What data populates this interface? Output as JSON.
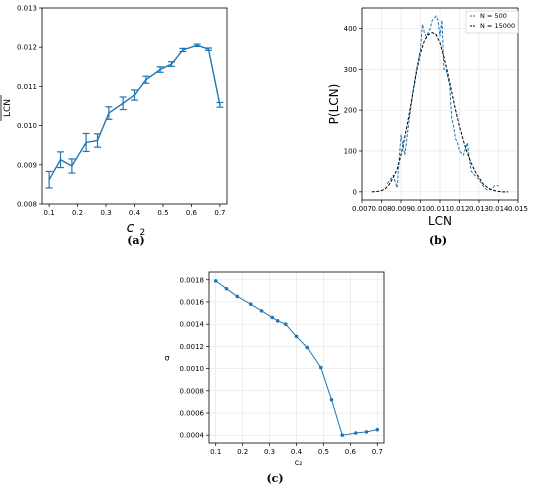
{
  "chart_data": [
    {
      "type": "line",
      "panel_label": "(a)",
      "xlabel": "c",
      "xlabel_sub": "2",
      "ylabel": "LCN",
      "xlim": [
        0.075,
        0.725
      ],
      "ylim": [
        0.008,
        0.013
      ],
      "xticks": [
        "0.1",
        "0.2",
        "0.3",
        "0.4",
        "0.5",
        "0.6",
        "0.7"
      ],
      "yticks": [
        "0.008",
        "0.009",
        "0.010",
        "0.011",
        "0.012",
        "0.013"
      ],
      "grid": false,
      "error_bars": true,
      "color": "#1f77b4",
      "series": [
        {
          "x": [
            0.1,
            0.14,
            0.18,
            0.23,
            0.27,
            0.31,
            0.36,
            0.4,
            0.44,
            0.49,
            0.53,
            0.57,
            0.62,
            0.66,
            0.7
          ],
          "y": [
            0.00862,
            0.00913,
            0.00897,
            0.00957,
            0.00962,
            0.01032,
            0.01057,
            0.01078,
            0.01117,
            0.01143,
            0.01157,
            0.01193,
            0.01205,
            0.01195,
            0.01053
          ],
          "err": [
            0.00021,
            0.0002,
            0.00018,
            0.00023,
            0.00017,
            0.00016,
            0.00016,
            0.00013,
            9e-05,
            7e-05,
            6e-05,
            4e-05,
            3e-05,
            3e-05,
            6e-05
          ]
        }
      ]
    },
    {
      "type": "line",
      "panel_label": "(b)",
      "xlabel": "LCN",
      "ylabel": "P(LCN)",
      "xlim": [
        0.007,
        0.015
      ],
      "ylim": [
        -20,
        450
      ],
      "xticks": [
        "0.007",
        "0.008",
        "0.009",
        "0.010",
        "0.011",
        "0.012",
        "0.013",
        "0.014",
        "0.015"
      ],
      "yticks": [
        "0",
        "100",
        "200",
        "300",
        "400"
      ],
      "grid": true,
      "legend_position": "top-right",
      "series": [
        {
          "name": "N = 500",
          "color": "#1f77b4",
          "style": "dashed",
          "x": [
            0.0083,
            0.0086,
            0.0088,
            0.009,
            0.0092,
            0.0094,
            0.0096,
            0.0098,
            0.01,
            0.0101,
            0.0102,
            0.0103,
            0.0104,
            0.0105,
            0.0106,
            0.0107,
            0.0108,
            0.0109,
            0.011,
            0.0111,
            0.0112,
            0.0113,
            0.0114,
            0.0115,
            0.0116,
            0.0117,
            0.0118,
            0.0119,
            0.012,
            0.0121,
            0.0122,
            0.0124,
            0.0126,
            0.0128,
            0.013,
            0.0132,
            0.0134,
            0.0136,
            0.0138,
            0.014
          ],
          "y": [
            20,
            40,
            10,
            140,
            90,
            170,
            240,
            300,
            350,
            410,
            390,
            380,
            390,
            400,
            420,
            425,
            430,
            420,
            380,
            420,
            300,
            300,
            280,
            260,
            180,
            160,
            130,
            120,
            100,
            95,
            90,
            120,
            50,
            40,
            30,
            15,
            5,
            5,
            15,
            15
          ]
        },
        {
          "name": "N = 15000",
          "color": "#000000",
          "style": "dashed",
          "x": [
            0.0075,
            0.0078,
            0.008,
            0.0082,
            0.0084,
            0.0086,
            0.0088,
            0.009,
            0.0092,
            0.0094,
            0.0096,
            0.0098,
            0.01,
            0.0102,
            0.0104,
            0.0106,
            0.0108,
            0.011,
            0.0112,
            0.0114,
            0.0116,
            0.0118,
            0.012,
            0.0122,
            0.0124,
            0.0126,
            0.0128,
            0.013,
            0.0132,
            0.0134,
            0.0136,
            0.0138,
            0.014,
            0.0142,
            0.0145
          ],
          "y": [
            0,
            1,
            3,
            8,
            18,
            35,
            55,
            90,
            135,
            185,
            240,
            295,
            340,
            370,
            385,
            390,
            385,
            365,
            330,
            290,
            245,
            200,
            160,
            125,
            95,
            70,
            50,
            35,
            20,
            12,
            6,
            3,
            1,
            0,
            0
          ]
        }
      ]
    },
    {
      "type": "line",
      "panel_label": "(c)",
      "xlabel": "c₂",
      "ylabel": "σ",
      "xlim": [
        0.075,
        0.725
      ],
      "ylim": [
        0.00033,
        0.00187
      ],
      "xticks": [
        "0.1",
        "0.2",
        "0.3",
        "0.4",
        "0.5",
        "0.6",
        "0.7"
      ],
      "yticks": [
        "0.0004",
        "0.0006",
        "0.0008",
        "0.0010",
        "0.0012",
        "0.0014",
        "0.0016",
        "0.0018"
      ],
      "grid": true,
      "marker": "dot",
      "color": "#1f77b4",
      "series": [
        {
          "x": [
            0.1,
            0.14,
            0.18,
            0.23,
            0.27,
            0.31,
            0.33,
            0.36,
            0.4,
            0.44,
            0.49,
            0.53,
            0.57,
            0.62,
            0.66,
            0.7
          ],
          "y": [
            0.00179,
            0.00172,
            0.00165,
            0.00158,
            0.00152,
            0.00146,
            0.00143,
            0.0014,
            0.00129,
            0.00119,
            0.00101,
            0.00072,
            0.0004,
            0.00042,
            0.00043,
            0.00045
          ]
        }
      ]
    }
  ]
}
